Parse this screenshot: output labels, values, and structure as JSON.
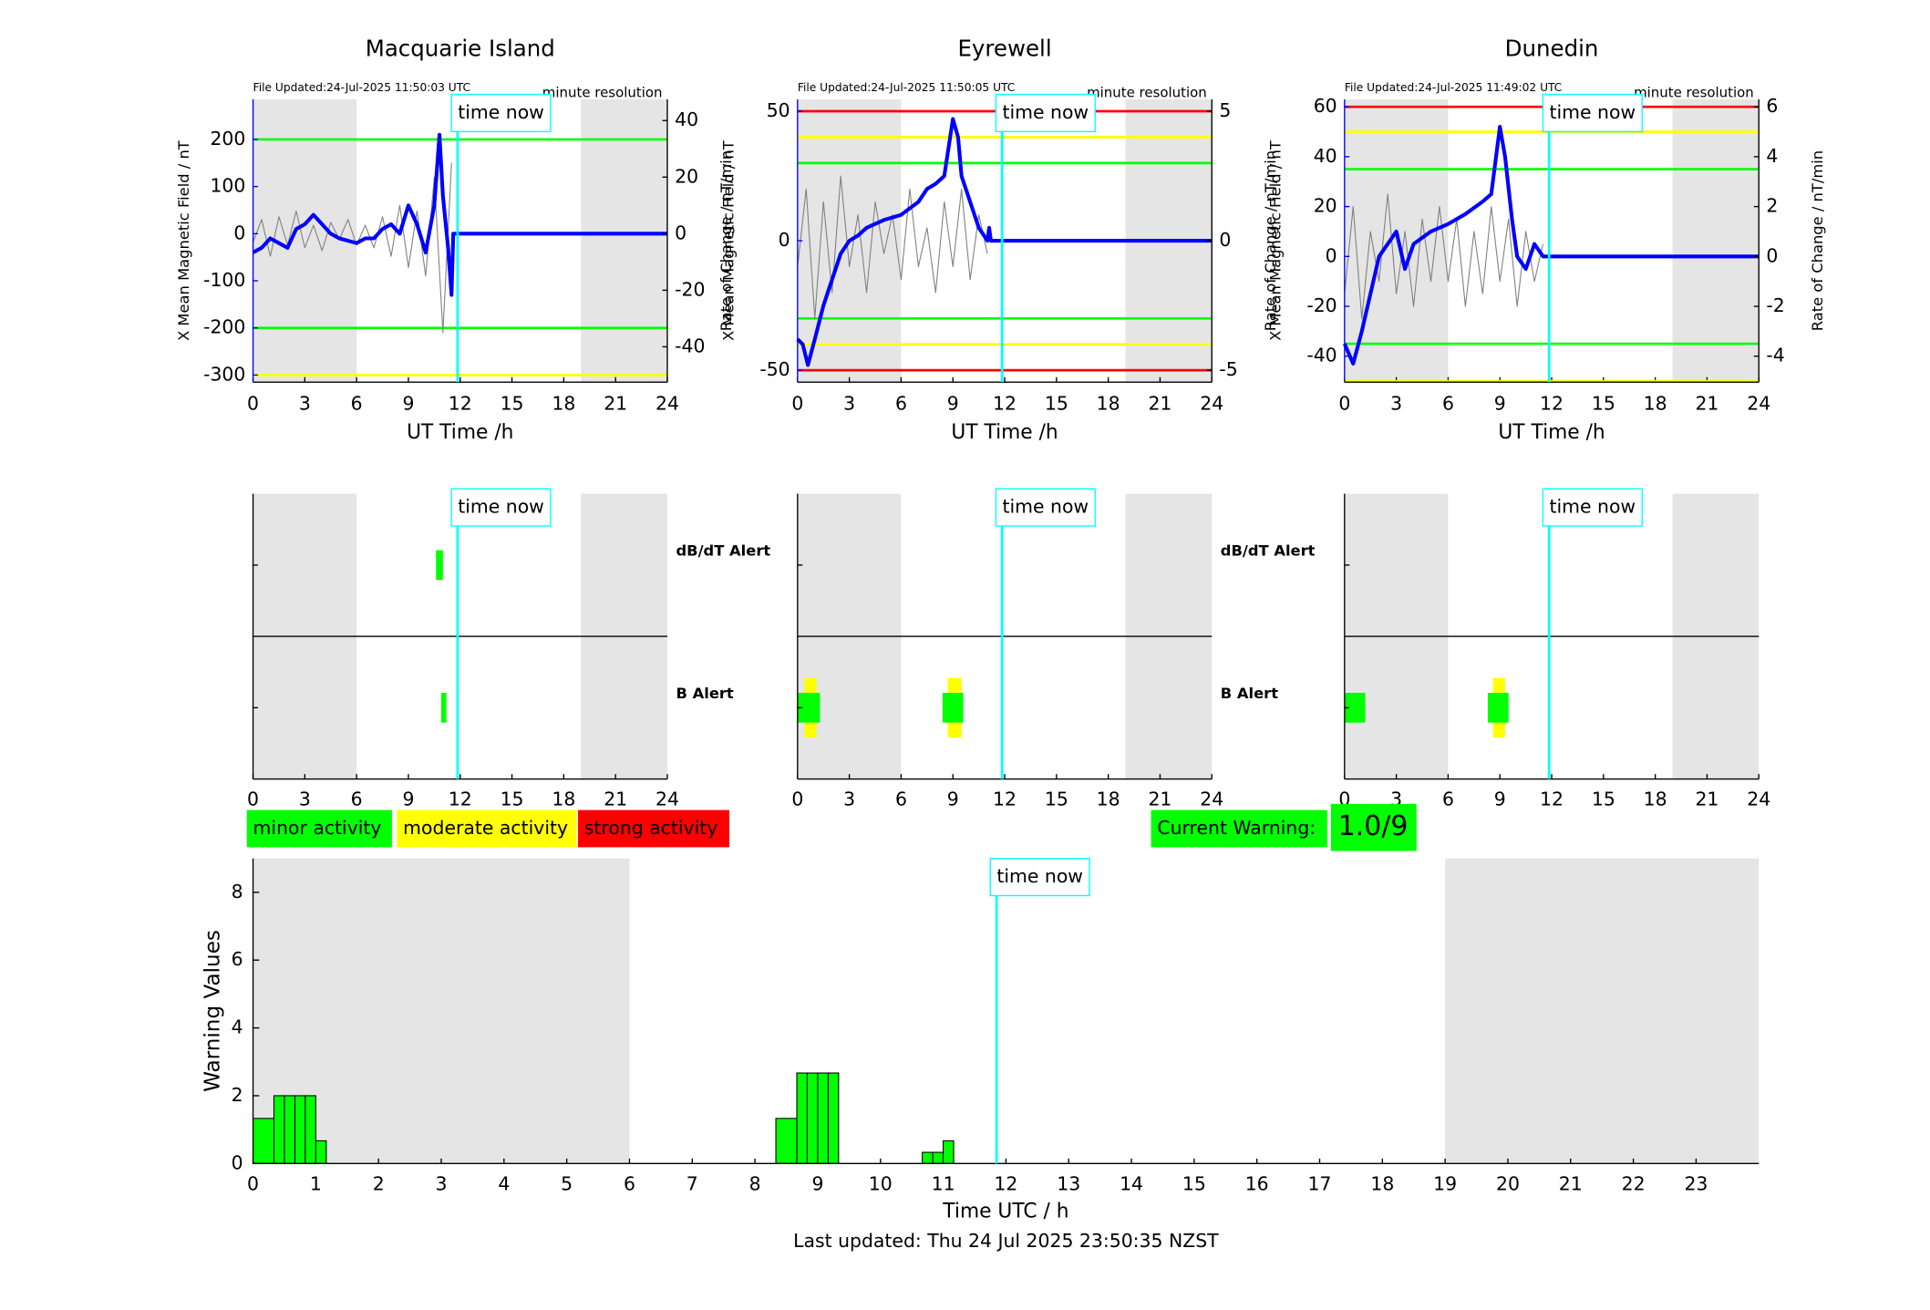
{
  "chart_data": [
    {
      "type": "line",
      "title": "Macquarie Island",
      "subtitle": "File Updated:24-Jul-2025 11:50:03 UTC",
      "resolution": "minute resolution",
      "xlabel": "UT Time /h",
      "ylabel": "X Mean Magnetic Field / nT",
      "y2label": "Rate of Change / nT/min",
      "xlim": [
        0,
        24
      ],
      "xticks": [
        0,
        3,
        6,
        9,
        12,
        15,
        18,
        21,
        24
      ],
      "ylim": [
        -315,
        285
      ],
      "yticks": [
        -300,
        -200,
        -100,
        0,
        100,
        200
      ],
      "y2lim": [
        -52.5,
        47.5
      ],
      "y2ticks": [
        -40,
        -20,
        0,
        20,
        40
      ],
      "shaded": [
        [
          0,
          6
        ],
        [
          19,
          24
        ]
      ],
      "time_now": {
        "x": 11.85,
        "label": "time now"
      },
      "thresholds": [
        {
          "value": 200,
          "color": "#00ff00"
        },
        {
          "value": -200,
          "color": "#00ff00"
        },
        {
          "value": -300,
          "color": "#ffff00"
        }
      ],
      "series": [
        {
          "color": "#808080",
          "axis": "y2",
          "x": [
            0,
            0.5,
            1,
            1.5,
            2,
            2.5,
            3,
            3.5,
            4,
            4.5,
            5,
            5.5,
            6,
            6.5,
            7,
            7.5,
            8,
            8.5,
            9,
            9.5,
            10,
            10.5,
            11,
            11.5
          ],
          "values": [
            -3,
            5,
            -8,
            6,
            -4,
            8,
            -5,
            3,
            -6,
            4,
            -2,
            5,
            -4,
            3,
            -5,
            6,
            -8,
            10,
            -12,
            8,
            -15,
            20,
            -35,
            25
          ]
        },
        {
          "color": "#0000ff",
          "x": [
            0,
            0.5,
            1,
            1.5,
            2,
            2.5,
            3,
            3.5,
            4,
            4.5,
            5,
            5.5,
            6,
            6.5,
            7,
            7.5,
            8,
            8.5,
            9,
            9.5,
            10,
            10.5,
            10.8,
            11,
            11.3,
            11.5,
            11.6,
            24
          ],
          "values": [
            -40,
            -30,
            -10,
            -20,
            -30,
            10,
            20,
            40,
            20,
            0,
            -10,
            -15,
            -20,
            -10,
            -10,
            10,
            20,
            0,
            60,
            20,
            -40,
            60,
            210,
            80,
            -30,
            -130,
            0,
            0
          ]
        }
      ]
    },
    {
      "type": "line",
      "title": "Eyrewell",
      "subtitle": "File Updated:24-Jul-2025 11:50:05 UTC",
      "resolution": "minute resolution",
      "xlabel": "UT Time /h",
      "ylabel": "X Mean Magnetic Field / nT",
      "y2label": "Rate of Change / nT/min",
      "xlim": [
        0,
        24
      ],
      "xticks": [
        0,
        3,
        6,
        9,
        12,
        15,
        18,
        21,
        24
      ],
      "ylim": [
        -54.6,
        54.6
      ],
      "yticks": [
        -50,
        0,
        50
      ],
      "y2lim": [
        -5.46,
        5.46
      ],
      "y2ticks": [
        -5,
        0,
        5
      ],
      "shaded": [
        [
          0,
          6
        ],
        [
          19,
          24
        ]
      ],
      "time_now": {
        "x": 11.85,
        "label": "time now"
      },
      "thresholds": [
        {
          "value": 50,
          "color": "#ff0000"
        },
        {
          "value": 40,
          "color": "#ffff00"
        },
        {
          "value": 30,
          "color": "#00ff00"
        },
        {
          "value": -30,
          "color": "#00ff00"
        },
        {
          "value": -40,
          "color": "#ffff00"
        },
        {
          "value": -50,
          "color": "#ff0000"
        }
      ],
      "series": [
        {
          "color": "#808080",
          "axis": "y2",
          "x": [
            0,
            0.5,
            1,
            1.5,
            2,
            2.5,
            3,
            3.5,
            4,
            4.5,
            5,
            5.5,
            6,
            6.5,
            7,
            7.5,
            8,
            8.5,
            9,
            9.5,
            10,
            10.5,
            11
          ],
          "values": [
            -1,
            2,
            -3,
            1.5,
            -2,
            2.5,
            -1,
            1,
            -2,
            1.5,
            -0.5,
            1,
            -1.5,
            2,
            -1,
            0.5,
            -2,
            1.5,
            -1,
            2,
            -1.5,
            1,
            -0.5
          ]
        },
        {
          "color": "#0000ff",
          "x": [
            0,
            0.3,
            0.6,
            1,
            1.5,
            2,
            2.5,
            3,
            3.5,
            4,
            5,
            6,
            7,
            7.5,
            8,
            8.5,
            9,
            9.3,
            9.5,
            10,
            10.5,
            11,
            11.1,
            11.2,
            24
          ],
          "values": [
            -38,
            -40,
            -48,
            -38,
            -25,
            -15,
            -5,
            0,
            2,
            5,
            8,
            10,
            15,
            20,
            22,
            25,
            47,
            40,
            25,
            15,
            5,
            0,
            5,
            0,
            0
          ]
        }
      ]
    },
    {
      "type": "line",
      "title": "Dunedin",
      "subtitle": "File Updated:24-Jul-2025 11:49:02 UTC",
      "resolution": "minute resolution",
      "xlabel": "UT Time /h",
      "ylabel": "X Mean Magnetic Field / nT",
      "y2label": "Rate of Change / nT/min",
      "xlim": [
        0,
        24
      ],
      "xticks": [
        0,
        3,
        6,
        9,
        12,
        15,
        18,
        21,
        24
      ],
      "ylim": [
        -50.4,
        63
      ],
      "yticks": [
        -40,
        -20,
        0,
        20,
        40,
        60
      ],
      "y2lim": [
        -5.04,
        6.3
      ],
      "y2ticks": [
        -4,
        -2,
        0,
        2,
        4,
        6
      ],
      "shaded": [
        [
          0,
          6
        ],
        [
          19,
          24
        ]
      ],
      "time_now": {
        "x": 11.85,
        "label": "time now"
      },
      "thresholds": [
        {
          "value": 60,
          "color": "#ff0000"
        },
        {
          "value": 50,
          "color": "#ffff00"
        },
        {
          "value": 35,
          "color": "#00ff00"
        },
        {
          "value": -35,
          "color": "#00ff00"
        },
        {
          "value": -50,
          "color": "#ffff00"
        }
      ],
      "series": [
        {
          "color": "#808080",
          "axis": "y2",
          "x": [
            0,
            0.5,
            1,
            1.5,
            2,
            2.5,
            3,
            3.5,
            4,
            4.5,
            5,
            5.5,
            6,
            6.5,
            7,
            7.5,
            8,
            8.5,
            9,
            9.5,
            10,
            10.5,
            11,
            11.5
          ],
          "values": [
            -1.5,
            2,
            -2.5,
            1,
            -1,
            2.5,
            -1.5,
            1,
            -2,
            1.5,
            -1,
            2,
            -1,
            1.5,
            -2,
            1,
            -1.5,
            2,
            -1,
            1.5,
            -2,
            1,
            -1,
            0.5
          ]
        },
        {
          "color": "#0000ff",
          "x": [
            0,
            0.5,
            1,
            1.5,
            2,
            3,
            3.5,
            4,
            5,
            6,
            7,
            8,
            8.5,
            9,
            9.3,
            9.7,
            10,
            10.5,
            11,
            11.5,
            24
          ],
          "values": [
            -35,
            -43,
            -30,
            -15,
            0,
            10,
            -5,
            5,
            10,
            13,
            17,
            22,
            25,
            52,
            40,
            15,
            0,
            -5,
            5,
            0,
            0
          ]
        }
      ]
    },
    {
      "type": "alert",
      "xlim": [
        0,
        24
      ],
      "xticks": [
        0,
        3,
        6,
        9,
        12,
        15,
        18,
        21,
        24
      ],
      "shaded": [
        [
          0,
          6
        ],
        [
          19,
          24
        ]
      ],
      "time_now": {
        "x": 11.85,
        "label": "time now"
      },
      "rows": [
        {
          "label": "dB/dT Alert",
          "color": "#000000",
          "bars": [
            {
              "x": [
                10.6,
                11.0
              ],
              "color": "#00ff00"
            }
          ]
        },
        {
          "label": "B Alert",
          "color": "#0000ff",
          "bars": [
            {
              "x": [
                10.9,
                11.2
              ],
              "color": "#00ff00"
            }
          ]
        }
      ]
    },
    {
      "type": "alert",
      "xlim": [
        0,
        24
      ],
      "xticks": [
        0,
        3,
        6,
        9,
        12,
        15,
        18,
        21,
        24
      ],
      "shaded": [
        [
          0,
          6
        ],
        [
          19,
          24
        ]
      ],
      "time_now": {
        "x": 11.85,
        "label": "time now"
      },
      "rows": [
        {
          "label": "dB/dT Alert",
          "color": "#000000",
          "bars": []
        },
        {
          "label": "B Alert",
          "color": "#0000ff",
          "bars": [
            {
              "x": [
                0.4,
                1.1
              ],
              "color": "#ffff00"
            },
            {
              "x": [
                0,
                1.3
              ],
              "color": "#00ff00"
            },
            {
              "x": [
                8.7,
                9.5
              ],
              "color": "#ffff00"
            },
            {
              "x": [
                8.4,
                9.6
              ],
              "color": "#00ff00"
            }
          ]
        }
      ]
    },
    {
      "type": "alert",
      "xlim": [
        0,
        24
      ],
      "xticks": [
        0,
        3,
        6,
        9,
        12,
        15,
        18,
        21,
        24
      ],
      "shaded": [
        [
          0,
          6
        ],
        [
          19,
          24
        ]
      ],
      "time_now": {
        "x": 11.85,
        "label": "time now"
      },
      "rows": [
        {
          "bars": []
        },
        {
          "bars": [
            {
              "x": [
                0,
                1.2
              ],
              "color": "#00ff00"
            },
            {
              "x": [
                8.6,
                9.3
              ],
              "color": "#ffff00"
            },
            {
              "x": [
                8.3,
                9.5
              ],
              "color": "#00ff00"
            }
          ]
        }
      ]
    },
    {
      "type": "bar",
      "xlabel": "Time UTC / h",
      "ylabel": "Warning Values",
      "xlim": [
        0,
        24
      ],
      "xticks": [
        0,
        1,
        2,
        3,
        4,
        5,
        6,
        7,
        8,
        9,
        10,
        11,
        12,
        13,
        14,
        15,
        16,
        17,
        18,
        19,
        20,
        21,
        22,
        23
      ],
      "ylim": [
        0,
        9
      ],
      "yticks": [
        0,
        2,
        4,
        6,
        8
      ],
      "shaded": [
        [
          0,
          6
        ],
        [
          19,
          24
        ]
      ],
      "time_now": {
        "x": 11.85,
        "label": "time now"
      },
      "color": "#00ff00",
      "bars": [
        {
          "x": [
            0,
            0.333
          ],
          "value": 1.33
        },
        {
          "x": [
            0.333,
            0.5
          ],
          "value": 2
        },
        {
          "x": [
            0.5,
            0.667
          ],
          "value": 2
        },
        {
          "x": [
            0.667,
            0.833
          ],
          "value": 2
        },
        {
          "x": [
            0.833,
            1
          ],
          "value": 2
        },
        {
          "x": [
            1,
            1.167
          ],
          "value": 0.67
        },
        {
          "x": [
            8.333,
            8.667
          ],
          "value": 1.33
        },
        {
          "x": [
            8.667,
            8.833
          ],
          "value": 2.67
        },
        {
          "x": [
            8.833,
            9
          ],
          "value": 2.67
        },
        {
          "x": [
            9,
            9.167
          ],
          "value": 2.67
        },
        {
          "x": [
            9.167,
            9.333
          ],
          "value": 2.67
        },
        {
          "x": [
            10.667,
            10.833
          ],
          "value": 0.33
        },
        {
          "x": [
            10.833,
            11
          ],
          "value": 0.33
        },
        {
          "x": [
            11,
            11.167
          ],
          "value": 0.67
        }
      ],
      "legend": [
        {
          "name": "minor activity",
          "color": "#00ff00"
        },
        {
          "name": "moderate activity",
          "color": "#ffff00"
        },
        {
          "name": "strong activity",
          "color": "#ff0000"
        }
      ],
      "current_warning": {
        "label": "Current Warning:",
        "value": "1.0/9",
        "color": "#00ff00"
      },
      "footnote": "Last updated: Thu 24 Jul 2025 23:50:35 NZST"
    }
  ]
}
